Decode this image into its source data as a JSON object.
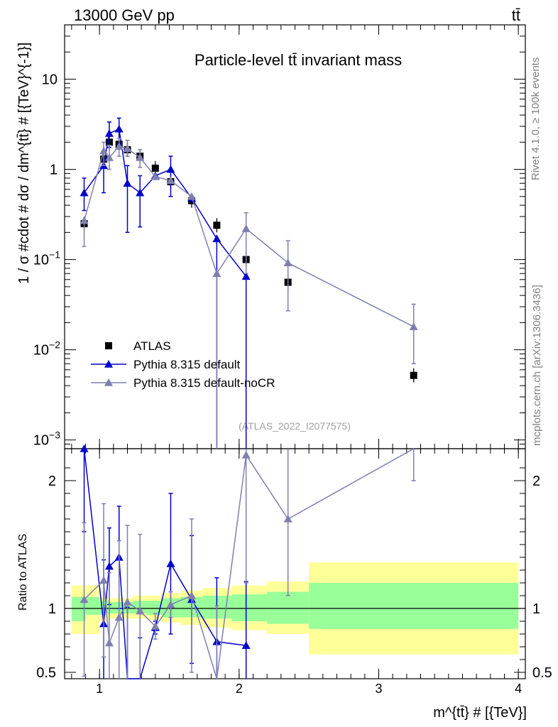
{
  "header": {
    "energy_label": "13000 GeV pp",
    "process_label": "tt̄"
  },
  "side_labels": {
    "rivet": "Rivet 4.1.0, ≥ 100k events",
    "mcplots": "mcplots.cern.ch [arXiv:1306.3436]"
  },
  "chart_data": {
    "type": "scatter",
    "title": "Particle-level tt̄ invariant mass",
    "reference_label": "(ATLAS_2022_I2077575)",
    "ylabel": "1 / σ #cdot # dσ / dm^{tt̄} # [{TeV}^{-1}]",
    "ylabel_ratio": "Ratio to ATLAS",
    "xlabel": "m^{tt̄} # [{TeV}]",
    "xlim": [
      0.75,
      4.05
    ],
    "ylim": [
      0.0008,
      40
    ],
    "ratio_ylim": [
      0.45,
      2.25
    ],
    "yscale": "log",
    "x_ticks": [
      {
        "value": 1,
        "label": "1"
      },
      {
        "value": 2,
        "label": "2"
      },
      {
        "value": 3,
        "label": "3"
      },
      {
        "value": 4,
        "label": "4"
      }
    ],
    "y_ticks": [
      {
        "value": 10,
        "base": "10",
        "exp": ""
      },
      {
        "value": 1,
        "base": "1",
        "exp": ""
      },
      {
        "value": 0.1,
        "base": "10",
        "exp": "−1"
      },
      {
        "value": 0.01,
        "base": "10",
        "exp": "−2"
      },
      {
        "value": 0.001,
        "base": "10",
        "exp": "−3"
      }
    ],
    "ratio_ticks": [
      {
        "value": 0.5,
        "label": "0.5"
      },
      {
        "value": 1,
        "label": "1"
      },
      {
        "value": 2,
        "label": "2"
      }
    ],
    "legend": {
      "position": "lower-left",
      "entries": [
        {
          "name": "ATLAS",
          "marker": "square",
          "color": "#000000"
        },
        {
          "name": "Pythia 8.315 default",
          "marker": "triangle",
          "color": "#0000cc"
        },
        {
          "name": "Pythia 8.315 default-noCR",
          "marker": "triangle",
          "color": "#7f7fb0"
        }
      ]
    },
    "series": [
      {
        "name": "ATLAS",
        "color": "#000000",
        "x": [
          0.89,
          1.03,
          1.07,
          1.14,
          1.2,
          1.29,
          1.4,
          1.51,
          1.66,
          1.84,
          2.05,
          2.35,
          3.25
        ],
        "y": [
          0.25,
          1.3,
          2.0,
          1.9,
          1.65,
          1.4,
          1.03,
          0.73,
          0.45,
          0.24,
          0.1,
          0.056,
          0.0052
        ]
      },
      {
        "name": "Pythia 8.315 default",
        "color": "#0000cc",
        "x": [
          0.89,
          1.03,
          1.07,
          1.14,
          1.2,
          1.29,
          1.4,
          1.51,
          1.66,
          1.84,
          2.05
        ],
        "y": [
          0.55,
          1.1,
          2.5,
          2.8,
          0.7,
          0.55,
          0.85,
          1.0,
          0.48,
          0.17,
          0.065
        ],
        "yerr_up": [
          0.25,
          0.5,
          0.85,
          0.9,
          0.4,
          0.3,
          0.0,
          0.4,
          0.0,
          0.0,
          0.0
        ],
        "yerr_down": [
          0.2,
          0.55,
          0.75,
          0.9,
          0.5,
          0.32,
          0.0,
          0.5,
          0.0,
          0.17,
          0.065
        ],
        "ratio": [
          2.25,
          0.88,
          1.33,
          1.4,
          0.41,
          0.37,
          0.85,
          1.35,
          1.07,
          0.74,
          0.71
        ],
        "ratio_err": [
          0.65,
          0.5,
          0.3,
          0.4,
          0.6,
          0.4,
          0.05,
          0.55,
          0.5,
          0.5,
          0.5
        ]
      },
      {
        "name": "Pythia 8.315 default-noCR",
        "color": "#7f7fb0",
        "x": [
          0.89,
          1.03,
          1.07,
          1.14,
          1.2,
          1.29,
          1.4,
          1.51,
          1.66,
          1.84,
          2.05,
          2.35,
          3.25
        ],
        "y": [
          0.27,
          1.6,
          1.35,
          1.8,
          1.7,
          1.35,
          0.83,
          0.75,
          0.5,
          0.07,
          0.22,
          0.092,
          0.018
        ],
        "yerr_up": [
          0.0,
          0.4,
          0.5,
          0.4,
          0.4,
          0.3,
          0.0,
          0.0,
          0.0,
          0.0,
          0.11,
          0.07,
          0.014
        ],
        "yerr_down": [
          0.13,
          0.5,
          0.35,
          0.4,
          0.3,
          0.3,
          0.0,
          0.0,
          0.0,
          0.0699,
          0.15,
          0.065,
          0.011
        ],
        "ratio": [
          1.07,
          1.22,
          0.73,
          0.93,
          1.05,
          0.98,
          0.86,
          1.03,
          1.1,
          0.42,
          2.2,
          1.7,
          2.6
        ],
        "ratio_err": [
          0.6,
          0.6,
          0.55,
          0.6,
          0.6,
          0.6,
          0.1,
          0.1,
          0.6,
          0.6,
          1.0,
          0.6,
          0.6
        ]
      }
    ],
    "ratio_band_inner": [
      {
        "x0": 0.8,
        "x1": 0.9,
        "lo": 0.9,
        "hi": 1.09
      },
      {
        "x0": 0.9,
        "x1": 1.0,
        "lo": 0.95,
        "hi": 1.09
      },
      {
        "x0": 1.0,
        "x1": 1.06,
        "lo": 0.95,
        "hi": 1.06
      },
      {
        "x0": 1.06,
        "x1": 1.12,
        "lo": 0.96,
        "hi": 1.05
      },
      {
        "x0": 1.12,
        "x1": 1.17,
        "lo": 0.96,
        "hi": 1.05
      },
      {
        "x0": 1.17,
        "x1": 1.24,
        "lo": 0.96,
        "hi": 1.05
      },
      {
        "x0": 1.24,
        "x1": 1.34,
        "lo": 0.96,
        "hi": 1.06
      },
      {
        "x0": 1.34,
        "x1": 1.45,
        "lo": 0.95,
        "hi": 1.06
      },
      {
        "x0": 1.45,
        "x1": 1.58,
        "lo": 0.93,
        "hi": 1.08
      },
      {
        "x0": 1.58,
        "x1": 1.74,
        "lo": 0.93,
        "hi": 1.09
      },
      {
        "x0": 1.74,
        "x1": 1.95,
        "lo": 0.92,
        "hi": 1.1
      },
      {
        "x0": 1.95,
        "x1": 2.2,
        "lo": 0.9,
        "hi": 1.11
      },
      {
        "x0": 2.2,
        "x1": 2.5,
        "lo": 0.88,
        "hi": 1.13
      },
      {
        "x0": 2.5,
        "x1": 4.0,
        "lo": 0.84,
        "hi": 1.2
      }
    ],
    "ratio_band_outer": [
      {
        "x0": 0.8,
        "x1": 0.9,
        "lo": 0.8,
        "hi": 1.18
      },
      {
        "x0": 0.9,
        "x1": 1.0,
        "lo": 0.8,
        "hi": 1.18
      },
      {
        "x0": 1.0,
        "x1": 1.06,
        "lo": 0.9,
        "hi": 1.09
      },
      {
        "x0": 1.06,
        "x1": 1.12,
        "lo": 0.92,
        "hi": 1.08
      },
      {
        "x0": 1.12,
        "x1": 1.17,
        "lo": 0.92,
        "hi": 1.08
      },
      {
        "x0": 1.17,
        "x1": 1.24,
        "lo": 0.92,
        "hi": 1.08
      },
      {
        "x0": 1.24,
        "x1": 1.34,
        "lo": 0.92,
        "hi": 1.1
      },
      {
        "x0": 1.34,
        "x1": 1.45,
        "lo": 0.91,
        "hi": 1.1
      },
      {
        "x0": 1.45,
        "x1": 1.58,
        "lo": 0.89,
        "hi": 1.12
      },
      {
        "x0": 1.58,
        "x1": 1.74,
        "lo": 0.87,
        "hi": 1.14
      },
      {
        "x0": 1.74,
        "x1": 1.95,
        "lo": 0.85,
        "hi": 1.16
      },
      {
        "x0": 1.95,
        "x1": 2.2,
        "lo": 0.83,
        "hi": 1.18
      },
      {
        "x0": 2.2,
        "x1": 2.5,
        "lo": 0.8,
        "hi": 1.21
      },
      {
        "x0": 2.5,
        "x1": 4.0,
        "lo": 0.64,
        "hi": 1.36
      }
    ]
  }
}
